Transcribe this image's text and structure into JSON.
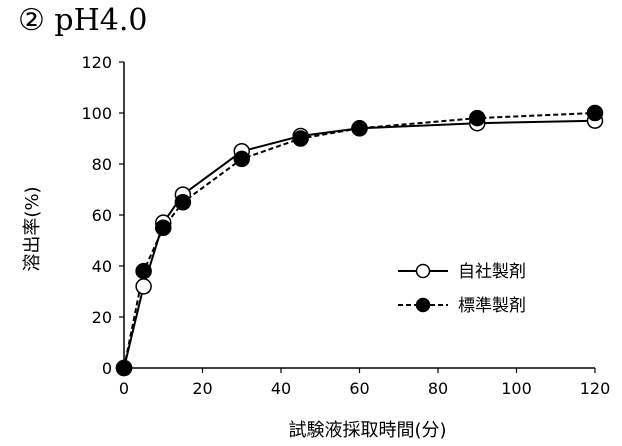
{
  "chart_data": {
    "type": "line",
    "title": "② pH4.0",
    "xlabel": "試験液採取時間(分)",
    "ylabel": "溶出率(%)",
    "xlim": [
      0,
      120
    ],
    "ylim": [
      0,
      120
    ],
    "xticks": [
      0,
      20,
      40,
      60,
      80,
      100,
      120
    ],
    "yticks": [
      0,
      20,
      40,
      60,
      80,
      100,
      120
    ],
    "grid": false,
    "legend_position": "right-center",
    "series": [
      {
        "name": "自社製剤",
        "line_style": "solid",
        "marker": "open-circle",
        "color": "#000000",
        "x": [
          0,
          5,
          10,
          15,
          30,
          45,
          60,
          90,
          120
        ],
        "y": [
          0,
          32,
          57,
          68,
          85,
          91,
          94,
          96,
          97
        ]
      },
      {
        "name": "標準製剤",
        "line_style": "dashed",
        "marker": "filled-circle",
        "color": "#000000",
        "x": [
          0,
          5,
          10,
          15,
          30,
          45,
          60,
          90,
          120
        ],
        "y": [
          0,
          38,
          55,
          65,
          82,
          90,
          94,
          98,
          100
        ]
      }
    ]
  }
}
